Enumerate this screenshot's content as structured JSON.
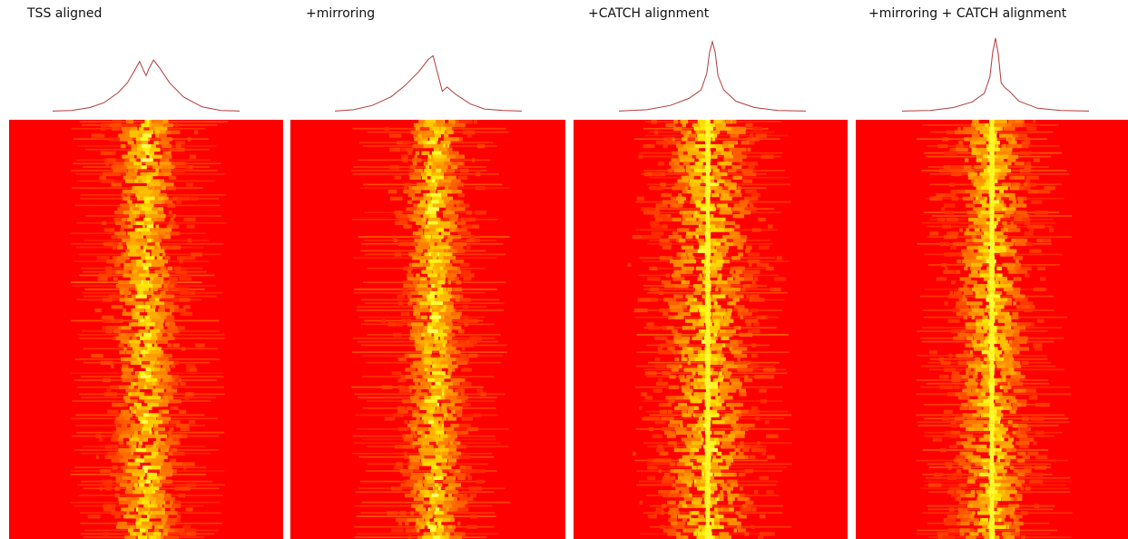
{
  "chart_data": [
    {
      "type": "heatmap",
      "title": "TSS aligned",
      "profile": {
        "x": [
          -1,
          -0.8,
          -0.6,
          -0.45,
          -0.3,
          -0.2,
          -0.12,
          -0.07,
          -0.03,
          0,
          0.03,
          0.08,
          0.15,
          0.25,
          0.4,
          0.6,
          0.8,
          1
        ],
        "y": [
          0.02,
          0.03,
          0.07,
          0.14,
          0.28,
          0.42,
          0.6,
          0.72,
          0.6,
          0.52,
          0.62,
          0.74,
          0.62,
          0.42,
          0.22,
          0.08,
          0.03,
          0.02
        ]
      },
      "heatmap": {
        "center": 0.0,
        "spread": 0.14,
        "peak_sharpness": 0.0,
        "rows": 120
      }
    },
    {
      "type": "heatmap",
      "title": "+mirroring",
      "profile": {
        "x": [
          -1,
          -0.8,
          -0.6,
          -0.4,
          -0.25,
          -0.1,
          0.0,
          0.05,
          0.1,
          0.15,
          0.2,
          0.3,
          0.45,
          0.6,
          0.8,
          1
        ],
        "y": [
          0.02,
          0.04,
          0.1,
          0.22,
          0.38,
          0.58,
          0.75,
          0.8,
          0.55,
          0.3,
          0.36,
          0.25,
          0.12,
          0.05,
          0.03,
          0.02
        ]
      },
      "heatmap": {
        "center": 0.05,
        "spread": 0.13,
        "peak_sharpness": 0.0,
        "rows": 120
      }
    },
    {
      "type": "heatmap",
      "title": "+CATCH alignment",
      "profile": {
        "x": [
          -1,
          -0.7,
          -0.45,
          -0.25,
          -0.12,
          -0.06,
          -0.03,
          0,
          0.03,
          0.06,
          0.12,
          0.25,
          0.45,
          0.7,
          1
        ],
        "y": [
          0.02,
          0.04,
          0.1,
          0.2,
          0.32,
          0.55,
          0.85,
          1.0,
          0.85,
          0.52,
          0.32,
          0.16,
          0.07,
          0.03,
          0.02
        ]
      },
      "heatmap": {
        "center": -0.02,
        "spread": 0.2,
        "peak_sharpness": 1.0,
        "rows": 120
      }
    },
    {
      "type": "heatmap",
      "title": "+mirroring + CATCH alignment",
      "profile": {
        "x": [
          -1,
          -0.7,
          -0.45,
          -0.25,
          -0.12,
          -0.06,
          -0.03,
          0,
          0.03,
          0.06,
          0.1,
          0.15,
          0.25,
          0.45,
          0.7,
          1
        ],
        "y": [
          0.02,
          0.03,
          0.07,
          0.15,
          0.27,
          0.5,
          0.85,
          1.05,
          0.82,
          0.42,
          0.35,
          0.3,
          0.16,
          0.06,
          0.03,
          0.02
        ]
      },
      "heatmap": {
        "center": 0.0,
        "spread": 0.16,
        "peak_sharpness": 1.0,
        "rows": 120
      }
    }
  ],
  "colors": {
    "background": "#ff0000",
    "hot": "#ffff00",
    "profile_line": "#b23a3a"
  }
}
